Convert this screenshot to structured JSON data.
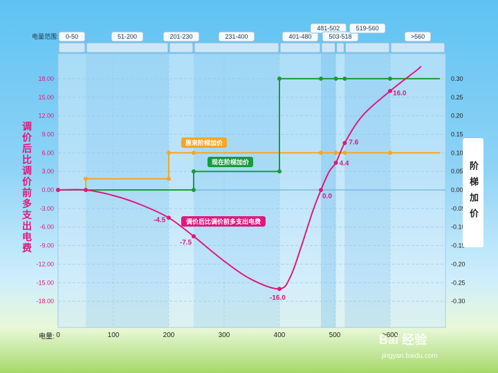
{
  "chart_data": {
    "type": "line",
    "range_title": "电量范围:",
    "bands": [
      {
        "label": "0-50",
        "from": 0,
        "to": 50
      },
      {
        "label": "51-200",
        "from": 50,
        "to": 200
      },
      {
        "label": "201-230",
        "from": 200,
        "to": 245
      },
      {
        "label": "231-400",
        "from": 245,
        "to": 400
      },
      {
        "label": "401-480",
        "from": 400,
        "to": 475
      },
      {
        "label": "481-502",
        "from": 475,
        "to": 502
      },
      {
        "label": "503-518",
        "from": 502,
        "to": 518
      },
      {
        "label": "519-560",
        "from": 518,
        "to": 600
      },
      {
        "label": ">560",
        "from": 600,
        "to": 700
      }
    ],
    "xlabel": "电量:",
    "xticks": [
      0,
      100,
      200,
      300,
      400,
      500,
      600
    ],
    "xtick_labels": [
      "0",
      "100",
      "200",
      "300",
      "400",
      "500",
      ">600"
    ],
    "xlim": [
      0,
      700
    ],
    "left_axis": {
      "title": "调价后比调价前多支出电费",
      "ylim": [
        -18,
        18
      ],
      "tick_labels": [
        "18.00",
        "15.00",
        "12.00",
        "9.00",
        "6.00",
        "3.00",
        "0.00",
        "-3.00",
        "-6.00",
        "-9.00",
        "-12.00",
        "-15.00",
        "-18.00"
      ],
      "tick_values": [
        18,
        15,
        12,
        9,
        6,
        3,
        0,
        -3,
        -6,
        -9,
        -12,
        -15,
        -18
      ]
    },
    "right_axis": {
      "title": "阶梯加价",
      "ylim": [
        -0.3,
        0.3
      ],
      "tick_labels": [
        "0.30",
        "0.25",
        "0.20",
        "0.15",
        "0.10",
        "0.05",
        "0.00",
        "-0.05",
        "-0.10",
        "-0.15",
        "-0.20",
        "-0.25",
        "-0.30"
      ],
      "tick_values": [
        0.3,
        0.25,
        0.2,
        0.15,
        0.1,
        0.05,
        0.0,
        -0.05,
        -0.1,
        -0.15,
        -0.2,
        -0.25,
        -0.3
      ]
    },
    "series": [
      {
        "name": "原来阶梯加价",
        "color": "#f5a623",
        "axis": "right",
        "step": true,
        "points": [
          [
            0,
            0
          ],
          [
            50,
            0
          ],
          [
            50,
            0.03
          ],
          [
            200,
            0.03
          ],
          [
            200,
            0.1
          ],
          [
            245,
            0.1
          ],
          [
            475,
            0.1
          ],
          [
            502,
            0.1
          ],
          [
            518,
            0.1
          ],
          [
            600,
            0.1
          ],
          [
            690,
            0.1
          ]
        ],
        "markers": [
          [
            0,
            0
          ],
          [
            50,
            0
          ],
          [
            50,
            0.03
          ],
          [
            200,
            0.03
          ],
          [
            200,
            0.1
          ],
          [
            245,
            0.1
          ],
          [
            475,
            0.1
          ],
          [
            502,
            0.1
          ],
          [
            518,
            0.1
          ],
          [
            600,
            0.1
          ]
        ]
      },
      {
        "name": "现在阶梯加价",
        "color": "#1a9a3a",
        "axis": "right",
        "step": true,
        "points": [
          [
            0,
            0
          ],
          [
            245,
            0
          ],
          [
            245,
            0.05
          ],
          [
            400,
            0.05
          ],
          [
            400,
            0.3
          ],
          [
            475,
            0.3
          ],
          [
            502,
            0.3
          ],
          [
            518,
            0.3
          ],
          [
            600,
            0.3
          ],
          [
            690,
            0.3
          ]
        ],
        "markers": [
          [
            0,
            0
          ],
          [
            245,
            0
          ],
          [
            245,
            0.05
          ],
          [
            400,
            0.05
          ],
          [
            400,
            0.3
          ],
          [
            475,
            0.3
          ],
          [
            502,
            0.3
          ],
          [
            518,
            0.3
          ],
          [
            600,
            0.3
          ]
        ]
      },
      {
        "name": "调价后比调价前多支出电费",
        "color": "#e0187c",
        "axis": "left",
        "step": false,
        "points": [
          [
            0,
            0
          ],
          [
            50,
            0
          ],
          [
            100,
            -0.9
          ],
          [
            150,
            -2.4
          ],
          [
            200,
            -4.5
          ],
          [
            245,
            -7.5
          ],
          [
            300,
            -11.5
          ],
          [
            350,
            -14.5
          ],
          [
            400,
            -16.0
          ],
          [
            420,
            -14.0
          ],
          [
            440,
            -9.0
          ],
          [
            460,
            -3.5
          ],
          [
            475,
            0.0
          ],
          [
            490,
            3.0
          ],
          [
            502,
            4.4
          ],
          [
            518,
            7.6
          ],
          [
            550,
            12.0
          ],
          [
            600,
            16.0
          ],
          [
            650,
            19.5
          ],
          [
            655,
            20.0
          ]
        ],
        "markers": [
          [
            0,
            0
          ],
          [
            50,
            0
          ],
          [
            200,
            -4.5
          ],
          [
            245,
            -7.5
          ],
          [
            400,
            -16.0
          ],
          [
            475,
            0.0
          ],
          [
            502,
            4.4
          ],
          [
            518,
            7.6
          ],
          [
            600,
            16.0
          ]
        ]
      }
    ],
    "data_labels": [
      {
        "text": "-4.5",
        "x": 200,
        "y": -4.5
      },
      {
        "text": "-7.5",
        "x": 245,
        "y": -7.5
      },
      {
        "text": "-16.0",
        "x": 400,
        "y": -16.0
      },
      {
        "text": "0.0",
        "x": 475,
        "y": 0.0
      },
      {
        "text": "4.4",
        "x": 502,
        "y": 4.4
      },
      {
        "text": "7.6",
        "x": 518,
        "y": 7.6
      },
      {
        "text": "16.0",
        "x": 600,
        "y": 16.0
      }
    ],
    "series_callouts": [
      {
        "text": "原来阶梯加价",
        "series": 0,
        "at_x": 230,
        "at_y": 0.1
      },
      {
        "text": "现在阶梯加价",
        "series": 1,
        "at_x": 280,
        "at_y": 0.05
      },
      {
        "text": "调价后比调价前多支出电费",
        "series": 2,
        "at_x": 230,
        "at_y": -7.5
      }
    ]
  },
  "watermark": "Bai 经验",
  "watermark_sub": "jingyan.baidu.com"
}
